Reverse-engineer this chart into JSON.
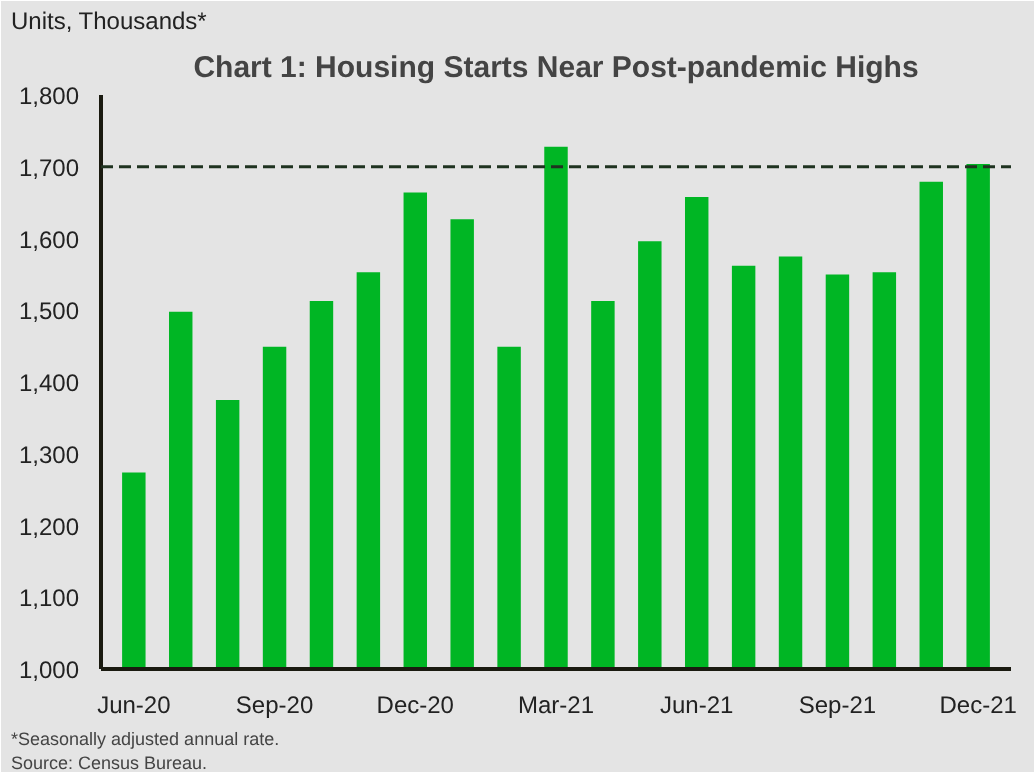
{
  "chart_data": {
    "type": "bar",
    "title": "Chart 1: Housing Starts Near Post-pandemic Highs",
    "ylabel": "Units, Thousands*",
    "categories": [
      "Jun-20",
      null,
      null,
      "Sep-20",
      null,
      null,
      "Dec-20",
      null,
      null,
      "Mar-21",
      null,
      null,
      "Jun-21",
      null,
      null,
      "Sep-21",
      null,
      null,
      "Dec-21"
    ],
    "values": [
      1274,
      1498,
      1375,
      1449,
      1513,
      1553,
      1664,
      1627,
      1449,
      1728,
      1513,
      1596,
      1658,
      1562,
      1575,
      1550,
      1553,
      1679,
      1704
    ],
    "color": "#00b624",
    "ylim": [
      1000,
      1800
    ],
    "yticks": [
      {
        "value": 1000,
        "label": "1,000"
      },
      {
        "value": 1100,
        "label": "1,100"
      },
      {
        "value": 1200,
        "label": "1,200"
      },
      {
        "value": 1300,
        "label": "1,300"
      },
      {
        "value": 1400,
        "label": "1,400"
      },
      {
        "value": 1500,
        "label": "1,500"
      },
      {
        "value": 1600,
        "label": "1,600"
      },
      {
        "value": 1700,
        "label": "1,700"
      },
      {
        "value": 1800,
        "label": "1,800"
      }
    ],
    "ref_lines": [
      {
        "axis": "y",
        "value": 1700,
        "color": "#1f3320",
        "line_style": "dashed"
      }
    ],
    "annotations": [
      "*Seasonally adjusted annual rate.",
      "Source: Census Bureau."
    ]
  }
}
